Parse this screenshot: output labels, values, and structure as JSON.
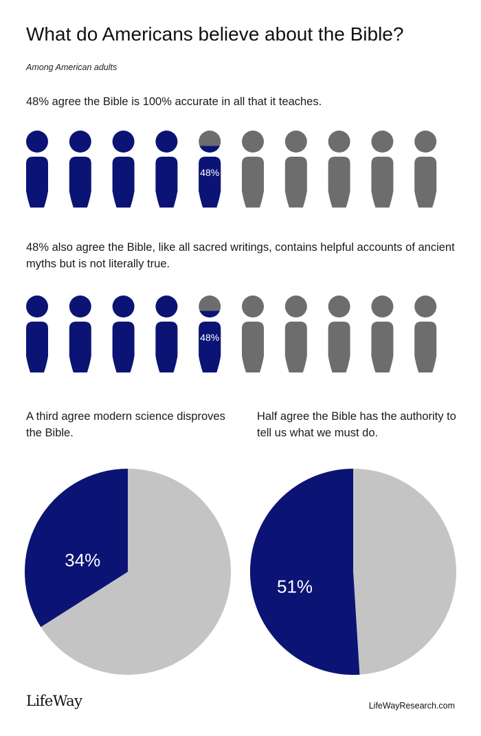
{
  "title": "What do Americans believe about the Bible?",
  "subtitle": "Among American adults",
  "colors": {
    "highlight": "#0b1475",
    "icon_rest": "#6d6d6d",
    "pie_rest": "#c4c4c4"
  },
  "chart_data": [
    {
      "type": "pictogram",
      "title": "48% agree the Bible is 100% accurate in all that it teaches.",
      "icon": "person-icon",
      "total_icons": 10,
      "value": 48,
      "unit": "%",
      "label": "48%"
    },
    {
      "type": "pictogram",
      "title": "48% also agree the Bible, like all sacred writings, contains helpful accounts of ancient myths but is not literally true.",
      "icon": "person-icon",
      "total_icons": 10,
      "value": 48,
      "unit": "%",
      "label": "48%"
    },
    {
      "type": "pie",
      "title": "A third agree modern science disproves the Bible.",
      "slices": [
        {
          "value": 34,
          "label": "34%"
        },
        {
          "value": 66,
          "label": ""
        }
      ]
    },
    {
      "type": "pie",
      "title": "Half agree the Bible has the authority to tell us what we must do.",
      "slices": [
        {
          "value": 51,
          "label": "51%"
        },
        {
          "value": 49,
          "label": ""
        }
      ]
    }
  ],
  "footer": {
    "logo": "LifeWay",
    "site": "LifeWayResearch.com"
  }
}
